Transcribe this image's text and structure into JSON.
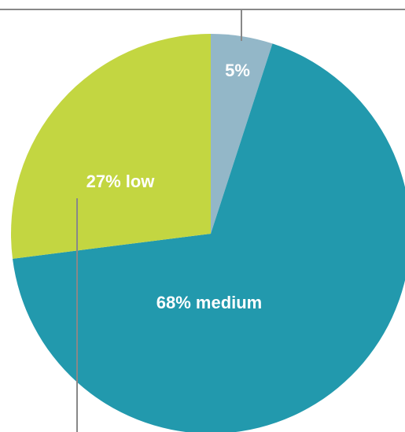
{
  "chart_data": {
    "type": "pie",
    "start_angle_deg": 0,
    "direction": "clockwise",
    "slices": [
      {
        "label": "5%",
        "value": 5,
        "color": "#93b7c8"
      },
      {
        "label": "68% medium",
        "value": 68,
        "color": "#2299ad"
      },
      {
        "label": "27% low",
        "value": 27,
        "color": "#c3d641"
      }
    ],
    "colors": {
      "leader_line": "#888888",
      "label_text": "#ffffff"
    }
  }
}
